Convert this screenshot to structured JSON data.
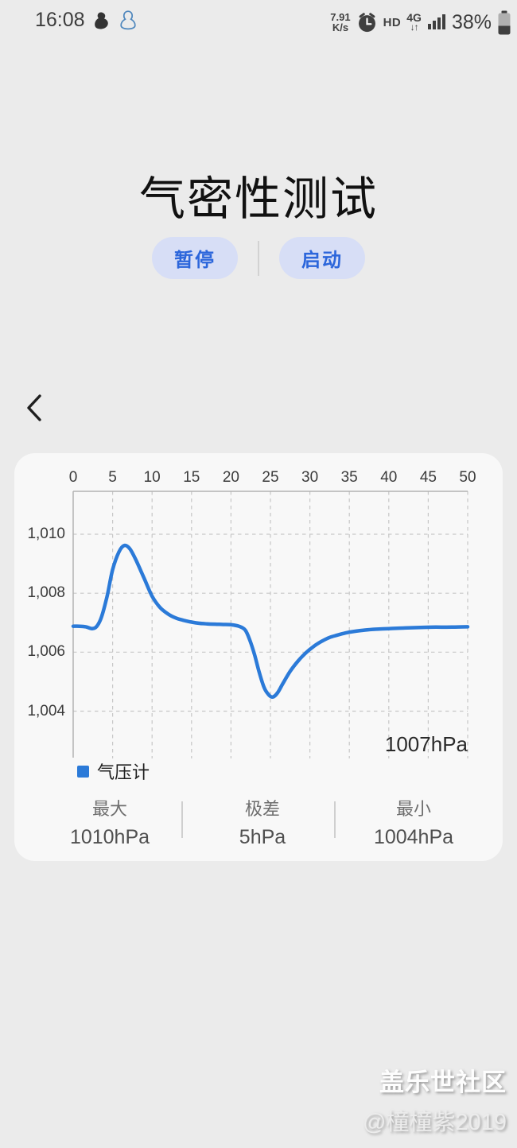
{
  "status_bar": {
    "time": "16:08",
    "left_icons": [
      "qq-notification-icon",
      "qq-chat-icon"
    ],
    "net_speed_value": "7.91",
    "net_speed_unit": "K/s",
    "right_icons": [
      "alarm-icon",
      "hd-icon",
      "network-type",
      "signal-icon",
      "battery-icon"
    ],
    "hd_label": "HD",
    "network_type": "4G",
    "network_arrows": "↓↑",
    "battery_percent": "38%"
  },
  "header": {
    "title": "气密性测试"
  },
  "controls": {
    "pause_label": "暂停",
    "start_label": "启动"
  },
  "chart_data": {
    "type": "line",
    "title": "",
    "xlabel": "",
    "ylabel": "",
    "xlim": [
      0,
      50
    ],
    "ylim_approx": [
      1002.5,
      1011.5
    ],
    "grid": "dashed",
    "legend_position": "bottom-left",
    "x_ticks": [
      0,
      5,
      10,
      15,
      20,
      25,
      30,
      35,
      40,
      45,
      50
    ],
    "y_ticks": [
      {
        "value": 1010,
        "label": "1,010"
      },
      {
        "value": 1008,
        "label": "1,008"
      },
      {
        "value": 1006,
        "label": "1,006"
      },
      {
        "value": 1004,
        "label": "1,004"
      }
    ],
    "current_label": "1007hPa",
    "series": [
      {
        "name": "气压计",
        "color": "#2b7ad8",
        "points": [
          [
            0,
            1006.88
          ],
          [
            0.8,
            1006.88
          ],
          [
            1.6,
            1006.86
          ],
          [
            2.4,
            1006.8
          ],
          [
            3.0,
            1006.88
          ],
          [
            3.6,
            1007.2
          ],
          [
            4.3,
            1007.9
          ],
          [
            5.0,
            1008.8
          ],
          [
            5.8,
            1009.4
          ],
          [
            6.5,
            1009.62
          ],
          [
            7.2,
            1009.5
          ],
          [
            8.0,
            1009.1
          ],
          [
            9.0,
            1008.5
          ],
          [
            10.0,
            1007.9
          ],
          [
            11.0,
            1007.52
          ],
          [
            12.0,
            1007.3
          ],
          [
            13.0,
            1007.16
          ],
          [
            14.0,
            1007.08
          ],
          [
            15.0,
            1007.02
          ],
          [
            16.0,
            1006.98
          ],
          [
            17.0,
            1006.96
          ],
          [
            18.0,
            1006.95
          ],
          [
            19.0,
            1006.94
          ],
          [
            20.0,
            1006.93
          ],
          [
            21.0,
            1006.88
          ],
          [
            21.8,
            1006.75
          ],
          [
            22.4,
            1006.4
          ],
          [
            23.0,
            1005.9
          ],
          [
            23.6,
            1005.3
          ],
          [
            24.2,
            1004.8
          ],
          [
            24.8,
            1004.55
          ],
          [
            25.3,
            1004.48
          ],
          [
            25.9,
            1004.62
          ],
          [
            26.6,
            1004.95
          ],
          [
            27.5,
            1005.35
          ],
          [
            28.5,
            1005.7
          ],
          [
            29.5,
            1005.98
          ],
          [
            30.5,
            1006.2
          ],
          [
            31.5,
            1006.37
          ],
          [
            32.5,
            1006.5
          ],
          [
            33.5,
            1006.58
          ],
          [
            34.5,
            1006.65
          ],
          [
            35.5,
            1006.7
          ],
          [
            37.0,
            1006.75
          ],
          [
            38.5,
            1006.78
          ],
          [
            40.0,
            1006.8
          ],
          [
            42.0,
            1006.82
          ],
          [
            44.0,
            1006.84
          ],
          [
            46.0,
            1006.85
          ],
          [
            48.0,
            1006.85
          ],
          [
            50.0,
            1006.86
          ]
        ]
      }
    ]
  },
  "stats": {
    "max": {
      "label": "最大",
      "value": "1010hPa"
    },
    "range": {
      "label": "极差",
      "value": "5hPa"
    },
    "min": {
      "label": "最小",
      "value": "1004hPa"
    }
  },
  "watermark": {
    "line1": "盖乐世社区",
    "line2": "@橦橦紫2019"
  }
}
